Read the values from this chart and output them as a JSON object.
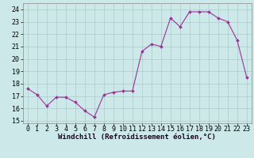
{
  "x": [
    0,
    1,
    2,
    3,
    4,
    5,
    6,
    7,
    8,
    9,
    10,
    11,
    12,
    13,
    14,
    15,
    16,
    17,
    18,
    19,
    20,
    21,
    22,
    23
  ],
  "y": [
    17.6,
    17.1,
    16.2,
    16.9,
    16.9,
    16.5,
    15.8,
    15.3,
    17.1,
    17.3,
    17.4,
    17.4,
    20.6,
    21.2,
    21.0,
    23.3,
    22.6,
    23.8,
    23.8,
    23.8,
    23.3,
    23.0,
    21.5,
    18.5
  ],
  "line_color": "#993399",
  "marker_color": "#993399",
  "bg_color": "#cce8e8",
  "grid_color": "#aacccc",
  "xlabel": "Windchill (Refroidissement éolien,°C)",
  "ylim": [
    14.8,
    24.5
  ],
  "xlim": [
    -0.5,
    23.5
  ],
  "yticks": [
    15,
    16,
    17,
    18,
    19,
    20,
    21,
    22,
    23,
    24
  ],
  "xticks": [
    0,
    1,
    2,
    3,
    4,
    5,
    6,
    7,
    8,
    9,
    10,
    11,
    12,
    13,
    14,
    15,
    16,
    17,
    18,
    19,
    20,
    21,
    22,
    23
  ],
  "label_fontsize": 6.5,
  "tick_fontsize": 6.0
}
